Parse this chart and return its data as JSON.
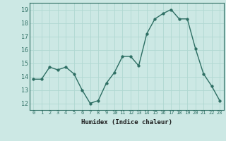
{
  "x": [
    0,
    1,
    2,
    3,
    4,
    5,
    6,
    7,
    8,
    9,
    10,
    11,
    12,
    13,
    14,
    15,
    16,
    17,
    18,
    19,
    20,
    21,
    22,
    23
  ],
  "y": [
    13.8,
    13.8,
    14.7,
    14.5,
    14.7,
    14.2,
    13.0,
    12.0,
    12.2,
    13.5,
    14.3,
    15.5,
    15.5,
    14.8,
    17.2,
    18.3,
    18.7,
    19.0,
    18.3,
    18.3,
    16.1,
    14.2,
    13.3,
    12.2
  ],
  "xlabel": "Humidex (Indice chaleur)",
  "ylim": [
    11.5,
    19.5
  ],
  "xlim": [
    -0.5,
    23.5
  ],
  "yticks": [
    12,
    13,
    14,
    15,
    16,
    17,
    18,
    19
  ],
  "xticks": [
    0,
    1,
    2,
    3,
    4,
    5,
    6,
    7,
    8,
    9,
    10,
    11,
    12,
    13,
    14,
    15,
    16,
    17,
    18,
    19,
    20,
    21,
    22,
    23
  ],
  "xtick_labels": [
    "0",
    "1",
    "2",
    "3",
    "4",
    "5",
    "6",
    "7",
    "8",
    "9",
    "10",
    "11",
    "12",
    "13",
    "14",
    "15",
    "16",
    "17",
    "18",
    "19",
    "20",
    "21",
    "22",
    "23"
  ],
  "line_color": "#2d6e63",
  "marker_color": "#2d6e63",
  "bg_color": "#cce8e4",
  "grid_color": "#b0d8d2",
  "spine_color": "#2d6e63",
  "tick_color": "#2d6e63",
  "label_color": "#1a1a1a"
}
